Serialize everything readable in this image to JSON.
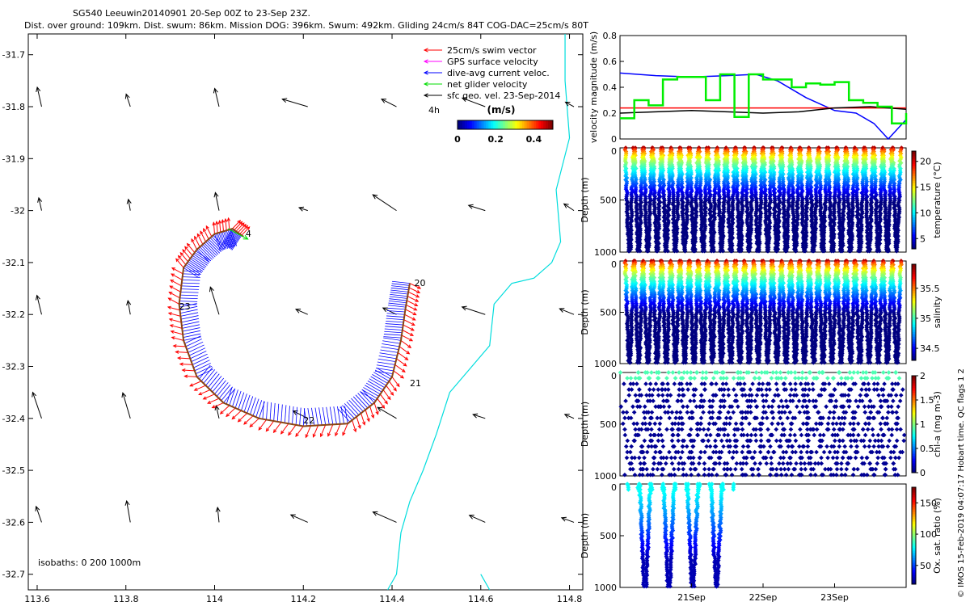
{
  "header": {
    "line1": "SG540 Leeuwin20140901 20-Sep 00Z to 23-Sep 23Z.",
    "line2": "Dist. over ground: 109km. Dist. swum: 86km. Mission DOG: 396km. Swum: 492km. Gliding 24cm/s 84T COG-DAC=25cm/s 80T"
  },
  "credit": "© IMOS 15-Feb-2019 04:07:17 Hobart time. QC flags 1  2",
  "colors": {
    "swim": "#ff0000",
    "gps": "#ff00ff",
    "current": "#0000ff",
    "net": "#00dd00",
    "sfc": "#000000",
    "isobath": "#00dddd",
    "track": "#8b4513"
  },
  "chart_data": [
    {
      "type": "scatter",
      "panel": "map",
      "xlim": [
        113.58,
        114.83
      ],
      "ylim": [
        -32.73,
        -31.66
      ],
      "xticks": [
        "113.6",
        "113.8",
        "114",
        "114.2",
        "114.4",
        "114.6",
        "114.8"
      ],
      "yticks": [
        "-31.7",
        "-31.8",
        "-31.9",
        "-32",
        "-32.1",
        "-32.2",
        "-32.3",
        "-32.4",
        "-32.5",
        "-32.6",
        "-32.7"
      ],
      "legend": [
        {
          "label": "25cm/s swim vector",
          "color": "#ff0000"
        },
        {
          "label": "GPS surface velocity",
          "color": "#ff00ff"
        },
        {
          "label": "dive-avg current veloc.",
          "color": "#0000ff"
        },
        {
          "label": "net glider velocity",
          "color": "#00dd00"
        },
        {
          "label": "sfc geo. vel. 23-Sep-2014",
          "color": "#000000"
        }
      ],
      "legend_note": "4h",
      "colorbar": {
        "title": "(m/s)",
        "ticks": [
          "0",
          "0.2",
          "0.4"
        ],
        "range": [
          0,
          0.5
        ]
      },
      "isobath_label": "isobaths: 0   200  1000m",
      "day_labels": [
        {
          "text": "20",
          "lon": 114.45,
          "lat": -32.145
        },
        {
          "text": "21",
          "lon": 114.44,
          "lat": -32.338
        },
        {
          "text": "22",
          "lon": 114.2,
          "lat": -32.41
        },
        {
          "text": "23",
          "lon": 113.92,
          "lat": -32.19
        },
        {
          "text": "4",
          "lon": 114.07,
          "lat": -32.05
        }
      ],
      "track": [
        [
          114.44,
          -32.14
        ],
        [
          114.43,
          -32.19
        ],
        [
          114.42,
          -32.25
        ],
        [
          114.4,
          -32.32
        ],
        [
          114.36,
          -32.37
        ],
        [
          114.3,
          -32.41
        ],
        [
          114.2,
          -32.415
        ],
        [
          114.1,
          -32.4
        ],
        [
          114.02,
          -32.37
        ],
        [
          113.96,
          -32.32
        ],
        [
          113.93,
          -32.25
        ],
        [
          113.92,
          -32.18
        ],
        [
          113.93,
          -32.11
        ],
        [
          113.96,
          -32.075
        ],
        [
          114.0,
          -32.045
        ],
        [
          114.04,
          -32.035
        ],
        [
          114.065,
          -32.05
        ]
      ],
      "isobath_0": [
        [
          114.79,
          -31.66
        ],
        [
          114.79,
          -31.75
        ],
        [
          114.8,
          -31.86
        ],
        [
          114.77,
          -31.96
        ],
        [
          114.78,
          -32.06
        ],
        [
          114.76,
          -32.1
        ],
        [
          114.72,
          -32.13
        ],
        [
          114.67,
          -32.14
        ],
        [
          114.63,
          -32.18
        ],
        [
          114.62,
          -32.26
        ],
        [
          114.58,
          -32.3
        ],
        [
          114.53,
          -32.35
        ],
        [
          114.5,
          -32.43
        ],
        [
          114.47,
          -32.5
        ],
        [
          114.44,
          -32.56
        ],
        [
          114.42,
          -32.62
        ],
        [
          114.41,
          -32.7
        ],
        [
          114.39,
          -32.73
        ]
      ],
      "isobath_200": [
        [
          114.6,
          -32.7
        ],
        [
          114.62,
          -32.73
        ]
      ]
    },
    {
      "type": "line",
      "panel": "velocity",
      "ylabel": "velocity magnitude (m/s)",
      "ylim": [
        0,
        0.8
      ],
      "yticks": [
        "0",
        "0.2",
        "0.4",
        "0.6",
        "0.8"
      ],
      "x_days": [
        20.0,
        24.0
      ],
      "series": [
        {
          "color": "#0000ff",
          "x": [
            20.0,
            20.5,
            21.0,
            21.5,
            21.9,
            22.2,
            22.6,
            23.0,
            23.3,
            23.55,
            23.75,
            24.0
          ],
          "y": [
            0.51,
            0.49,
            0.48,
            0.49,
            0.5,
            0.45,
            0.32,
            0.22,
            0.2,
            0.12,
            0.0,
            0.15
          ]
        },
        {
          "color": "#ff0000",
          "x": [
            20.0,
            24.0
          ],
          "y": [
            0.24,
            0.24
          ]
        },
        {
          "color": "#000000",
          "x": [
            20.0,
            20.5,
            21.0,
            21.5,
            22.0,
            22.5,
            23.0,
            23.5,
            24.0
          ],
          "y": [
            0.2,
            0.21,
            0.22,
            0.21,
            0.2,
            0.21,
            0.24,
            0.25,
            0.23
          ]
        },
        {
          "color": "#00ee00",
          "x": [
            20.0,
            20.2,
            20.4,
            20.6,
            20.8,
            21.0,
            21.2,
            21.4,
            21.6,
            21.8,
            22.0,
            22.2,
            22.4,
            22.6,
            22.8,
            23.0,
            23.2,
            23.4,
            23.6,
            23.8,
            24.0
          ],
          "y": [
            0.16,
            0.3,
            0.26,
            0.46,
            0.48,
            0.48,
            0.3,
            0.5,
            0.17,
            0.5,
            0.46,
            0.46,
            0.4,
            0.43,
            0.42,
            0.44,
            0.3,
            0.28,
            0.25,
            0.12,
            0.2
          ]
        }
      ]
    },
    {
      "type": "scatter",
      "panel": "temperature",
      "ylabel": "Depth (m)",
      "clabel": "temperature (°C)",
      "cticks": [
        "5",
        "10",
        "15",
        "20"
      ],
      "crange": [
        3,
        22
      ],
      "yticks": [
        "0",
        "500",
        "1000"
      ],
      "dives": 30
    },
    {
      "type": "scatter",
      "panel": "salinity",
      "ylabel": "Depth (m)",
      "clabel": "salinity",
      "cticks": [
        "34.5",
        "35",
        "35.5"
      ],
      "crange": [
        34.3,
        35.9
      ],
      "yticks": [
        "0",
        "500",
        "1000"
      ],
      "dives": 30
    },
    {
      "type": "scatter",
      "panel": "chla",
      "ylabel": "Depth (m)",
      "clabel": "chl-a (mg m-3)",
      "cticks": [
        "0",
        "0.5",
        "1",
        "1.5",
        "2"
      ],
      "crange": [
        0,
        2
      ],
      "yticks": [
        "0",
        "500",
        "1000"
      ],
      "dives": 30
    },
    {
      "type": "scatter",
      "panel": "oxygen",
      "ylabel": "Depth (m)",
      "clabel": "Ox. sat. ratio (%)",
      "cticks": [
        "50",
        "100",
        "150"
      ],
      "crange": [
        20,
        175
      ],
      "yticks": [
        "0",
        "500",
        "1000"
      ],
      "dives": 9,
      "xticks": [
        "21Sep",
        "22Sep",
        "23Sep"
      ]
    }
  ]
}
